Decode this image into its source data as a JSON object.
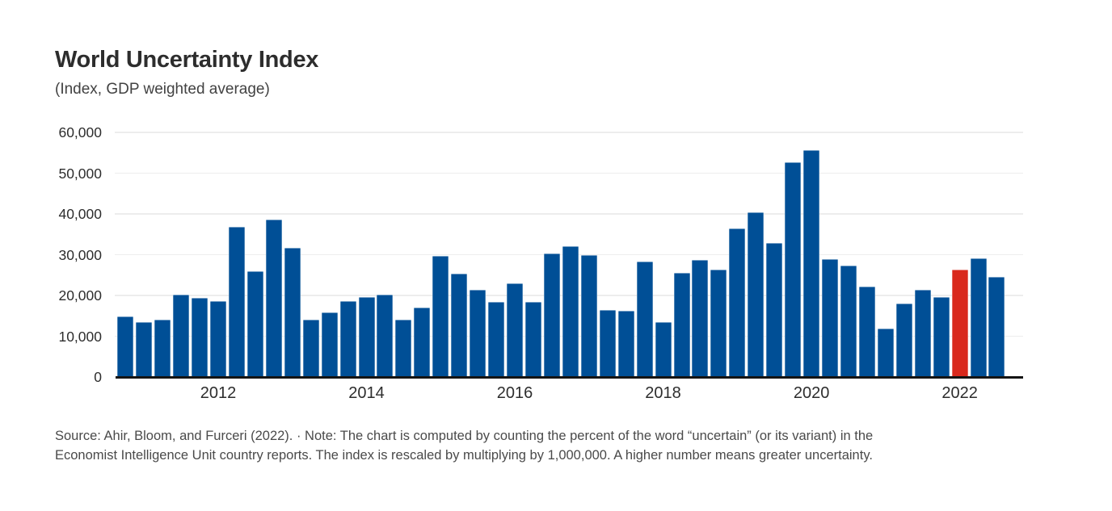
{
  "header": {
    "title": "World Uncertainty Index",
    "subtitle": "(Index, GDP weighted average)"
  },
  "chart_data": {
    "type": "bar",
    "title": "World Uncertainty Index",
    "subtitle": "(Index, GDP weighted average)",
    "categories": [
      "2010Q4",
      "2011Q1",
      "2011Q2",
      "2011Q3",
      "2011Q4",
      "2012Q1",
      "2012Q2",
      "2012Q3",
      "2012Q4",
      "2013Q1",
      "2013Q2",
      "2013Q3",
      "2013Q4",
      "2014Q1",
      "2014Q2",
      "2014Q3",
      "2014Q4",
      "2015Q1",
      "2015Q2",
      "2015Q3",
      "2015Q4",
      "2016Q1",
      "2016Q2",
      "2016Q3",
      "2016Q4",
      "2017Q1",
      "2017Q2",
      "2017Q3",
      "2017Q4",
      "2018Q1",
      "2018Q2",
      "2018Q3",
      "2018Q4",
      "2019Q1",
      "2019Q2",
      "2019Q3",
      "2019Q4",
      "2020Q1",
      "2020Q2",
      "2020Q3",
      "2020Q4",
      "2021Q1",
      "2021Q2",
      "2021Q3",
      "2021Q4",
      "2022Q1",
      "2022Q2",
      "2022Q3"
    ],
    "values": [
      14800,
      13400,
      14100,
      20200,
      19400,
      18600,
      36900,
      25900,
      38700,
      31700,
      14100,
      15900,
      18600,
      19700,
      20200,
      14100,
      17100,
      29800,
      25400,
      21300,
      18400,
      22900,
      18400,
      30300,
      32000,
      30000,
      16400,
      16200,
      28400,
      13500,
      25600,
      28700,
      26400,
      36500,
      40400,
      32900,
      52600,
      55600,
      29000,
      27400,
      22200,
      11900,
      18100,
      21400,
      19700,
      26400,
      29200,
      24500
    ],
    "highlight_index": 45,
    "ylim": [
      0,
      60000
    ],
    "ytick_step": 10000,
    "ytick_labels": [
      "0",
      "10,000",
      "20,000",
      "30,000",
      "40,000",
      "50,000",
      "60,000"
    ],
    "xticks": [
      {
        "label": "2012",
        "index": 5
      },
      {
        "label": "2014",
        "index": 13
      },
      {
        "label": "2016",
        "index": 21
      },
      {
        "label": "2018",
        "index": 29
      },
      {
        "label": "2020",
        "index": 37
      },
      {
        "label": "2022",
        "index": 45
      }
    ],
    "grid": true,
    "legend": false,
    "colors": {
      "bar": "#004f96",
      "highlight": "#d9291c",
      "gridline": "#ededed",
      "axis_line": "#141414",
      "tick_text": "#2d2d2d"
    }
  },
  "footer": {
    "lines": [
      "Source: Ahir, Bloom, and Furceri (2022). · Note: The chart is computed by counting the percent of the word “uncertain” (or its variant) in the",
      "Economist Intelligence Unit country reports. The index is rescaled by multiplying by 1,000,000. A higher number means greater uncertainty."
    ]
  }
}
